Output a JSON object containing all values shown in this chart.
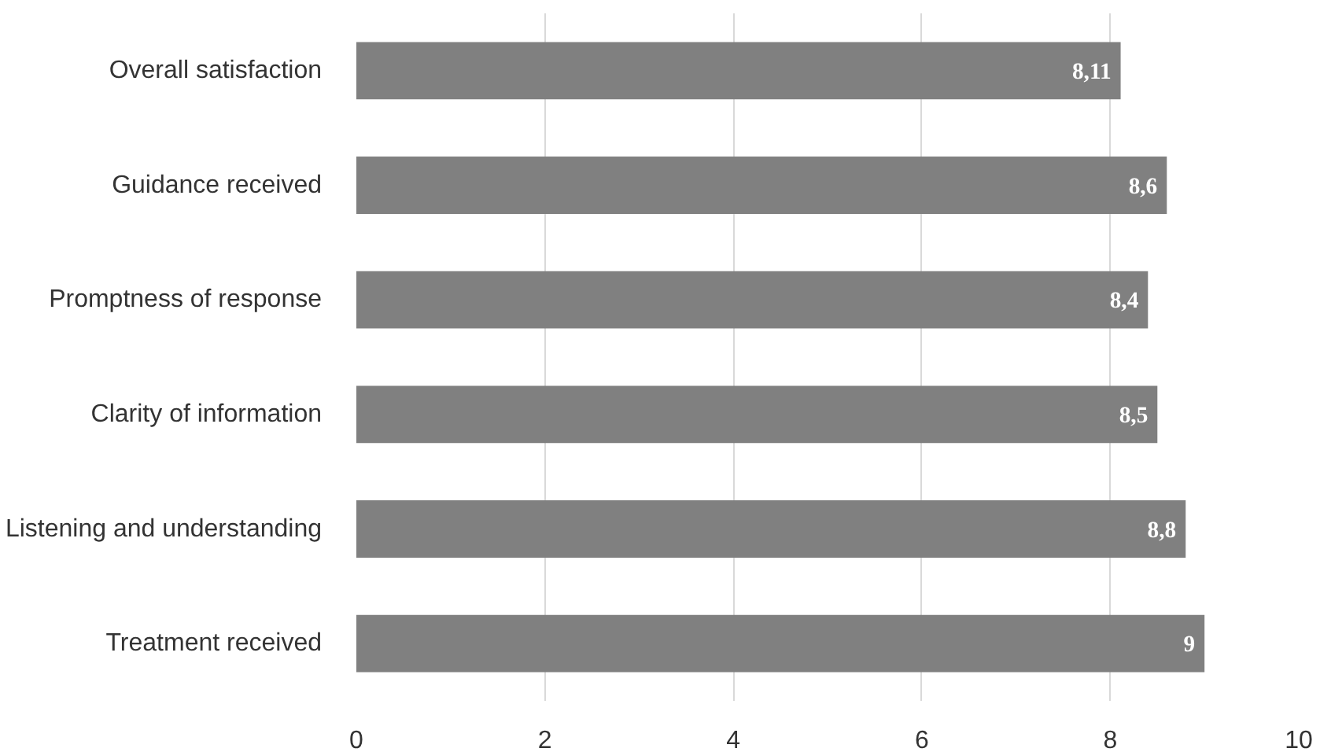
{
  "chart_data": {
    "type": "bar",
    "orientation": "horizontal",
    "categories": [
      "Overall satisfaction",
      "Guidance received",
      "Promptness of response",
      "Clarity of information",
      "Listening and understanding",
      "Treatment received"
    ],
    "values": [
      8.11,
      8.6,
      8.4,
      8.5,
      8.8,
      9
    ],
    "value_labels": [
      "8,11",
      "8,6",
      "8,4",
      "8,5",
      "8,8",
      "9"
    ],
    "color": "#808080",
    "xlim": [
      0,
      10
    ],
    "xticks": [
      0,
      2,
      4,
      6,
      8,
      10
    ],
    "grid": "x",
    "legend": false
  }
}
